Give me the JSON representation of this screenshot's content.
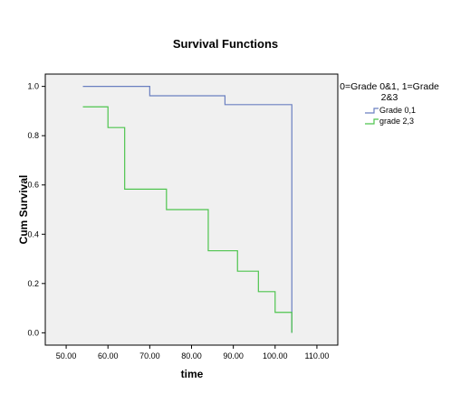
{
  "chart_data": {
    "type": "line",
    "step": true,
    "title": "Survival Functions",
    "xlabel": "time",
    "ylabel": "Cum Survival",
    "xlim": [
      45,
      115
    ],
    "ylim": [
      -0.05,
      1.05
    ],
    "xticks": [
      50,
      60,
      70,
      80,
      90,
      100,
      110
    ],
    "xtick_labels": [
      "50.00",
      "60.00",
      "70.00",
      "80.00",
      "90.00",
      "100.00",
      "110.00"
    ],
    "yticks": [
      0,
      0.2,
      0.4,
      0.6,
      0.8,
      1.0
    ],
    "ytick_labels": [
      "0.0",
      "0.2",
      "0.4",
      "0.6",
      "0.8",
      "1.0"
    ],
    "grid": false,
    "legend": {
      "position": "right",
      "title_lines": [
        "0=Grade 0&1, 1=Grade",
        "2&3"
      ]
    },
    "series": [
      {
        "name": "Grade 0,1",
        "color": "#6A7FC0",
        "x": [
          54,
          70,
          88,
          104,
          104
        ],
        "y": [
          1.0,
          0.962,
          0.926,
          0.926,
          0.0
        ]
      },
      {
        "name": "grade 2,3",
        "color": "#4EC44E",
        "x": [
          54,
          60,
          64,
          74,
          84,
          91,
          96,
          100,
          104,
          104
        ],
        "y": [
          0.917,
          0.833,
          0.583,
          0.5,
          0.333,
          0.25,
          0.167,
          0.083,
          0.083,
          0.0
        ]
      }
    ]
  },
  "colors": {
    "plot_background": "#F0F0F0",
    "axis": "#000000"
  }
}
